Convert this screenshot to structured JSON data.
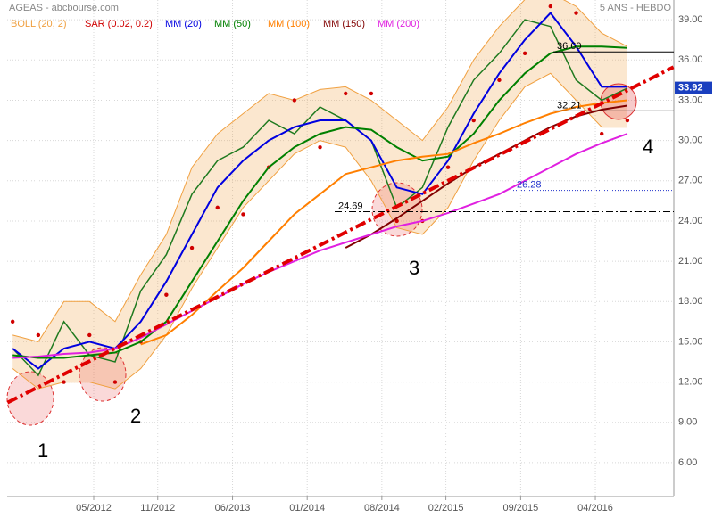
{
  "chart_data": {
    "type": "line",
    "title": "AGEAS - abcbourse.com",
    "subtitle": "5 ANS - HEBDO",
    "x": [
      2011.7,
      2011.9,
      2012.1,
      2012.3,
      2012.5,
      2012.7,
      2012.9,
      2013.1,
      2013.3,
      2013.5,
      2013.7,
      2013.9,
      2014.1,
      2014.3,
      2014.5,
      2014.7,
      2014.9,
      2015.1,
      2015.3,
      2015.5,
      2015.7,
      2015.9,
      2016.1,
      2016.3,
      2016.5
    ],
    "values": [
      14.5,
      12.5,
      16.5,
      14.0,
      13.5,
      18.8,
      21.5,
      26.0,
      28.5,
      29.5,
      31.5,
      30.5,
      32.5,
      31.5,
      30.0,
      25.0,
      26.5,
      31.0,
      34.5,
      36.5,
      39.0,
      38.5,
      34.5,
      33.0,
      33.9
    ],
    "color": "#1f7a1f",
    "series": [
      {
        "name": "BOLL (20, 2)",
        "color": "#f0a040",
        "style": "band",
        "values": [
          15.5,
          15.0,
          18.0,
          18.0,
          16.5,
          20.0,
          23.0,
          28.0,
          30.5,
          32.0,
          33.5,
          33.0,
          33.8,
          34.0,
          33.0,
          31.5,
          30.0,
          32.5,
          36.0,
          38.5,
          40.5,
          41.0,
          40.0,
          38.0,
          37.0
        ],
        "lower": [
          13.0,
          11.5,
          12.0,
          12.0,
          11.5,
          13.0,
          15.5,
          19.0,
          22.0,
          25.0,
          27.0,
          29.0,
          30.0,
          29.5,
          27.0,
          23.5,
          23.0,
          25.0,
          28.5,
          31.5,
          34.0,
          35.0,
          33.0,
          31.0,
          31.0
        ]
      },
      {
        "name": "SAR (0.02, 0.2)",
        "color": "#d00000",
        "style": "dots",
        "values": [
          16.5,
          15.5,
          12.0,
          15.5,
          12.0,
          15.0,
          18.5,
          22.0,
          25.0,
          24.5,
          28.0,
          33.0,
          29.5,
          33.5,
          33.5,
          24.0,
          24.0,
          28.0,
          31.5,
          34.5,
          36.5,
          40.0,
          39.5,
          30.5,
          31.5
        ]
      },
      {
        "name": "MM (20)",
        "color": "#0000e0",
        "style": "line",
        "values": [
          14.5,
          13.0,
          14.5,
          15.0,
          14.5,
          16.5,
          19.5,
          23.0,
          26.5,
          28.5,
          30.0,
          31.0,
          31.5,
          31.5,
          30.0,
          26.5,
          26.0,
          28.5,
          32.0,
          35.0,
          37.5,
          39.5,
          37.0,
          34.0,
          34.0
        ]
      },
      {
        "name": "MM (50)",
        "color": "#008000",
        "style": "line",
        "values": [
          14.0,
          13.8,
          13.8,
          14.0,
          14.2,
          15.0,
          16.5,
          19.5,
          22.5,
          25.5,
          28.0,
          29.5,
          30.5,
          31.0,
          30.8,
          29.5,
          28.5,
          28.8,
          30.5,
          33.0,
          35.0,
          36.5,
          37.0,
          37.0,
          36.9
        ]
      },
      {
        "name": "MM (100)",
        "color": "#ff7f00",
        "style": "line",
        "values": [
          null,
          null,
          null,
          null,
          null,
          14.8,
          15.5,
          17.0,
          18.8,
          20.5,
          22.5,
          24.5,
          26.0,
          27.5,
          28.0,
          28.5,
          28.8,
          29.0,
          29.8,
          30.5,
          31.3,
          32.0,
          32.5,
          32.8,
          33.0
        ]
      },
      {
        "name": "MM (150)",
        "color": "#800000",
        "style": "line",
        "values": [
          null,
          null,
          null,
          null,
          null,
          null,
          null,
          null,
          null,
          null,
          null,
          null,
          null,
          22.0,
          23.0,
          24.2,
          25.5,
          26.8,
          28.0,
          29.0,
          30.0,
          31.0,
          31.8,
          32.3,
          32.6
        ]
      },
      {
        "name": "MM (200)",
        "color": "#e020e0",
        "style": "line",
        "values": [
          13.8,
          13.9,
          14.1,
          14.2,
          14.5,
          15.3,
          16.3,
          17.3,
          18.3,
          19.3,
          20.2,
          21.0,
          21.8,
          22.4,
          23.0,
          23.6,
          24.0,
          24.6,
          25.3,
          26.0,
          27.0,
          28.0,
          29.0,
          29.8,
          30.5
        ]
      }
    ],
    "trendline": {
      "color": "#e00000",
      "x": [
        2011.66,
        2016.86
      ],
      "values": [
        10.47,
        35.47
      ]
    },
    "levels": [
      {
        "value": 36.6,
        "label": "36.60"
      },
      {
        "value": 32.21,
        "label": "32.21"
      },
      {
        "value": 24.69,
        "label": "24.69"
      },
      {
        "value": 26.28,
        "label": "26.28"
      }
    ],
    "last": {
      "value": 33.92,
      "label": "33.92",
      "color": "#1a3fbf"
    },
    "annotations": [
      "1",
      "2",
      "3",
      "4"
    ],
    "xlim": [
      2011.657,
      2016.863
    ],
    "ylim": [
      3.47,
      40.47
    ],
    "xticks": [
      {
        "value": 2012.333,
        "label": "05/2012"
      },
      {
        "value": 2012.833,
        "label": "11/2012"
      },
      {
        "value": 2013.417,
        "label": "06/2013"
      },
      {
        "value": 2014.0,
        "label": "01/2014"
      },
      {
        "value": 2014.583,
        "label": "08/2014"
      },
      {
        "value": 2015.083,
        "label": "02/2015"
      },
      {
        "value": 2015.667,
        "label": "09/2015"
      },
      {
        "value": 2016.25,
        "label": "04/2016"
      }
    ],
    "yticks": [
      {
        "value": 6,
        "label": "6.00"
      },
      {
        "value": 9,
        "label": "9.00"
      },
      {
        "value": 12,
        "label": "12.00"
      },
      {
        "value": 15,
        "label": "15.00"
      },
      {
        "value": 18,
        "label": "18.00"
      },
      {
        "value": 21,
        "label": "21.00"
      },
      {
        "value": 24,
        "label": "24.00"
      },
      {
        "value": 27,
        "label": "27.00"
      },
      {
        "value": 30,
        "label": "30.00"
      },
      {
        "value": 33,
        "label": "33.00"
      },
      {
        "value": 36,
        "label": "36.00"
      },
      {
        "value": 39,
        "label": "39.00"
      }
    ],
    "grid": true
  }
}
